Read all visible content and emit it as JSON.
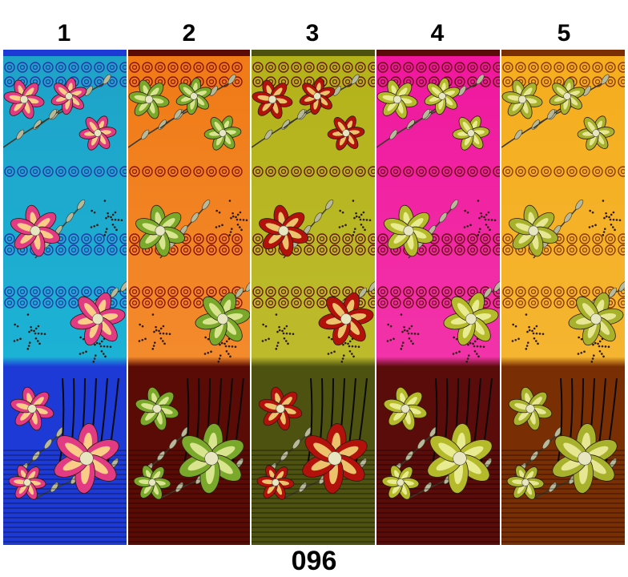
{
  "design_code": "096",
  "panels": [
    {
      "number": "1",
      "colors": {
        "top": "#1fa2c8",
        "bottom": "#1e3ad6",
        "mid": "#1cb2d5",
        "swirl": "#2237a8",
        "flower": "#e23a83",
        "flower_light": "#ffe58a"
      }
    },
    {
      "number": "2",
      "colors": {
        "top": "#f07a16",
        "bottom": "#5a0b06",
        "mid": "#f38a2c",
        "swirl": "#8a1408",
        "flower": "#7aa82a",
        "flower_light": "#eaf0a0"
      }
    },
    {
      "number": "3",
      "colors": {
        "top": "#b3b21a",
        "bottom": "#4d5211",
        "mid": "#bdbb2c",
        "swirl": "#6a1a08",
        "flower": "#b3120c",
        "flower_light": "#f7e27e"
      }
    },
    {
      "number": "4",
      "colors": {
        "top": "#f0169e",
        "bottom": "#5a0c0a",
        "mid": "#f233a9",
        "swirl": "#6b0910",
        "flower": "#b5ba2a",
        "flower_light": "#f2f3a2"
      }
    },
    {
      "number": "5",
      "colors": {
        "top": "#f5ad1d",
        "bottom": "#7a2e04",
        "mid": "#f5b530",
        "swirl": "#8c3a06",
        "flower": "#a7b12c",
        "flower_light": "#f1f0a6"
      }
    }
  ]
}
